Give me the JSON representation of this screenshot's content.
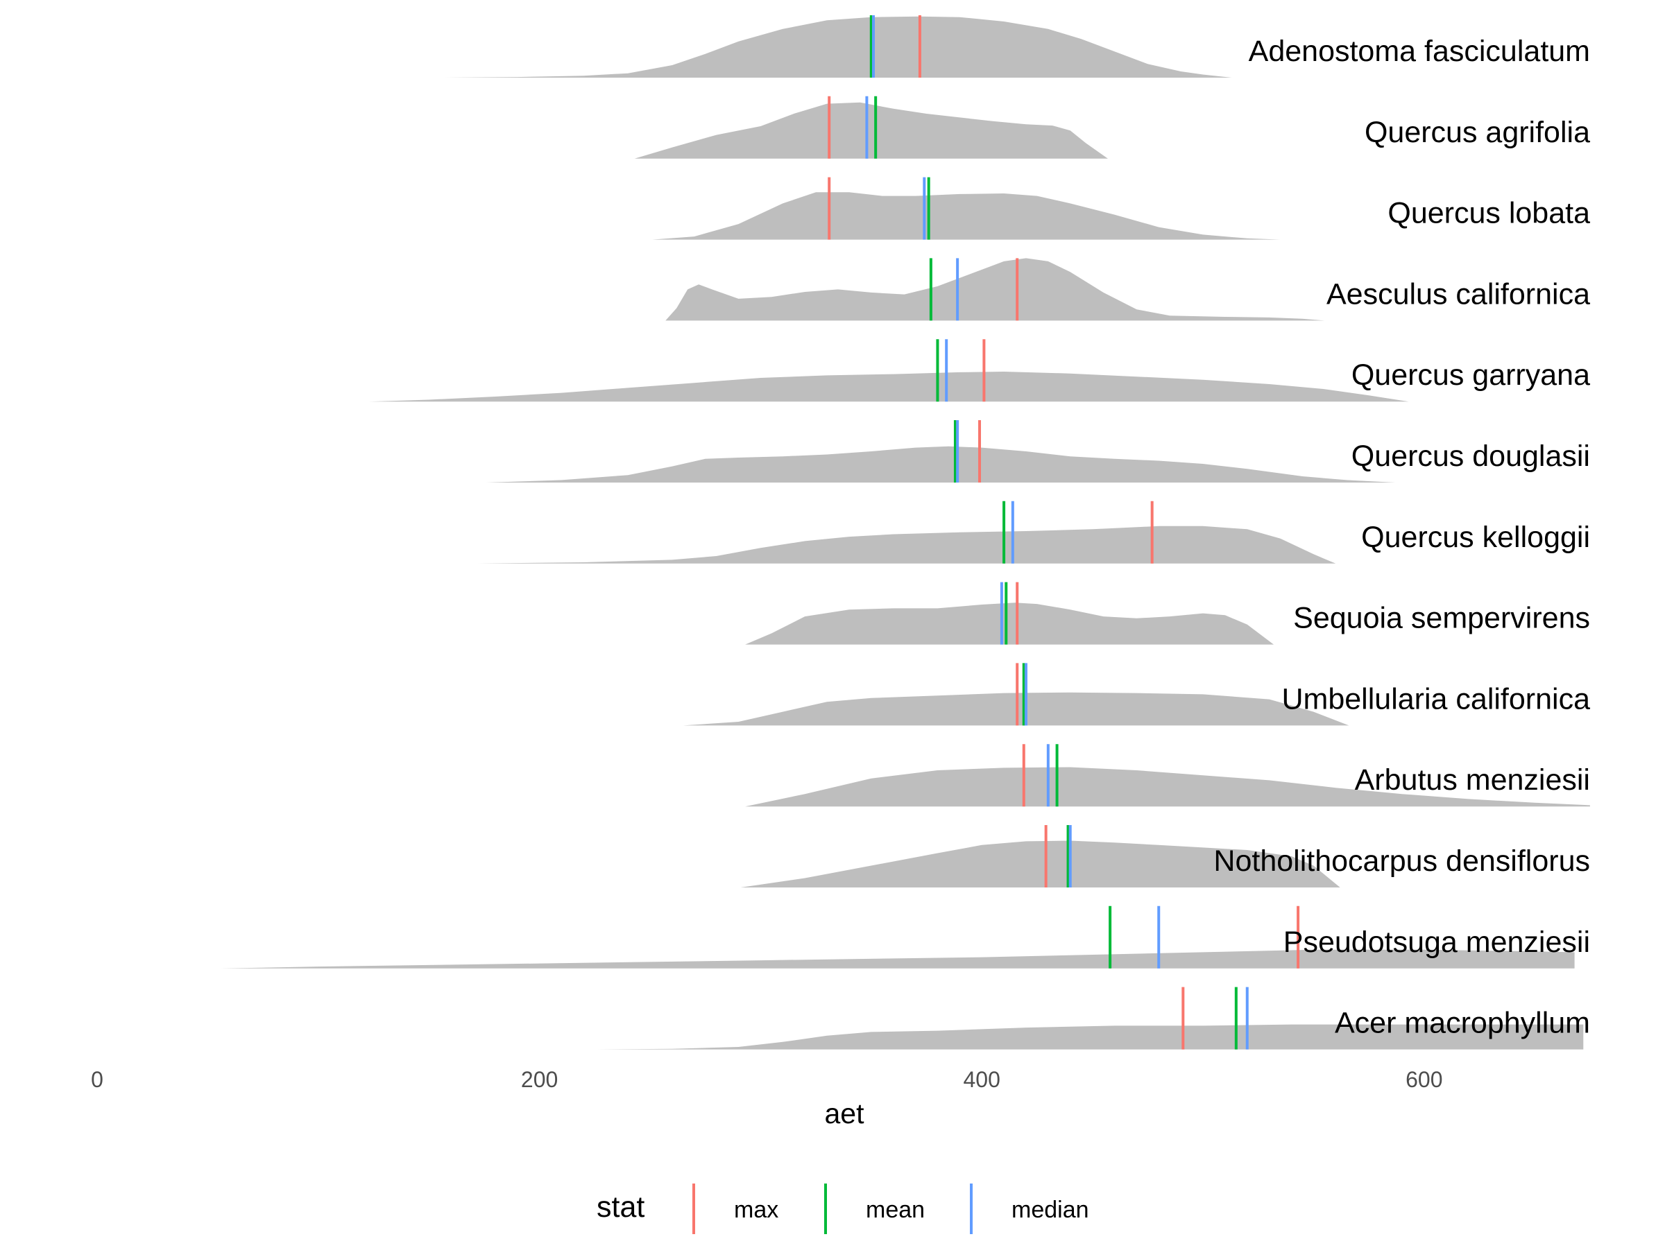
{
  "chart_data": {
    "type": "ridgeline",
    "xlabel": "aet",
    "xlim": [
      0,
      675
    ],
    "x_ticks": [
      0,
      200,
      400,
      600
    ],
    "x_tick_labels": [
      "0",
      "200",
      "400",
      "600"
    ],
    "grid": false,
    "legend": {
      "title": "stat",
      "position": "bottom",
      "entries": [
        {
          "key": "max",
          "label": "max",
          "color": "#F8766D"
        },
        {
          "key": "mean",
          "label": "mean",
          "color": "#00BA38"
        },
        {
          "key": "median",
          "label": "median",
          "color": "#619CFF"
        }
      ]
    },
    "density_color": "#bebebe",
    "species": [
      {
        "name": "Adenostoma fasciculatum",
        "range": [
          157,
          513
        ],
        "max": 372,
        "mean": 350,
        "median": 351,
        "density": [
          [
            157,
            0
          ],
          [
            190,
            0.01
          ],
          [
            220,
            0.03
          ],
          [
            240,
            0.07
          ],
          [
            260,
            0.2
          ],
          [
            275,
            0.38
          ],
          [
            290,
            0.58
          ],
          [
            310,
            0.78
          ],
          [
            330,
            0.92
          ],
          [
            350,
            0.97
          ],
          [
            372,
            0.98
          ],
          [
            390,
            0.97
          ],
          [
            410,
            0.9
          ],
          [
            430,
            0.78
          ],
          [
            445,
            0.62
          ],
          [
            460,
            0.42
          ],
          [
            475,
            0.22
          ],
          [
            490,
            0.1
          ],
          [
            500,
            0.05
          ],
          [
            513,
            0
          ]
        ]
      },
      {
        "name": "Quercus agrifolia",
        "range": [
          243,
          457
        ],
        "max": 331,
        "mean": 352,
        "median": 348,
        "density": [
          [
            243,
            0
          ],
          [
            260,
            0.18
          ],
          [
            280,
            0.38
          ],
          [
            300,
            0.52
          ],
          [
            315,
            0.72
          ],
          [
            330,
            0.88
          ],
          [
            345,
            0.9
          ],
          [
            360,
            0.8
          ],
          [
            375,
            0.72
          ],
          [
            390,
            0.66
          ],
          [
            405,
            0.6
          ],
          [
            420,
            0.55
          ],
          [
            432,
            0.53
          ],
          [
            440,
            0.45
          ],
          [
            447,
            0.25
          ],
          [
            457,
            0
          ]
        ]
      },
      {
        "name": "Quercus lobata",
        "range": [
          251,
          535
        ],
        "max": 331,
        "mean": 376,
        "median": 374,
        "density": [
          [
            251,
            0
          ],
          [
            270,
            0.05
          ],
          [
            290,
            0.25
          ],
          [
            310,
            0.58
          ],
          [
            325,
            0.76
          ],
          [
            340,
            0.76
          ],
          [
            355,
            0.7
          ],
          [
            370,
            0.7
          ],
          [
            390,
            0.73
          ],
          [
            410,
            0.74
          ],
          [
            425,
            0.7
          ],
          [
            440,
            0.58
          ],
          [
            460,
            0.4
          ],
          [
            480,
            0.2
          ],
          [
            500,
            0.08
          ],
          [
            520,
            0.02
          ],
          [
            535,
            0
          ]
        ]
      },
      {
        "name": "Aesculus californica",
        "range": [
          257,
          555
        ],
        "max": 416,
        "mean": 377,
        "median": 389,
        "density": [
          [
            257,
            0
          ],
          [
            262,
            0.2
          ],
          [
            267,
            0.5
          ],
          [
            272,
            0.58
          ],
          [
            278,
            0.5
          ],
          [
            290,
            0.35
          ],
          [
            305,
            0.38
          ],
          [
            320,
            0.46
          ],
          [
            335,
            0.5
          ],
          [
            350,
            0.45
          ],
          [
            365,
            0.42
          ],
          [
            380,
            0.55
          ],
          [
            395,
            0.75
          ],
          [
            410,
            0.95
          ],
          [
            420,
            1.0
          ],
          [
            430,
            0.95
          ],
          [
            440,
            0.78
          ],
          [
            455,
            0.45
          ],
          [
            470,
            0.18
          ],
          [
            485,
            0.08
          ],
          [
            510,
            0.06
          ],
          [
            530,
            0.05
          ],
          [
            545,
            0.03
          ],
          [
            555,
            0
          ]
        ]
      },
      {
        "name": "Quercus garryana",
        "range": [
          123,
          593
        ],
        "max": 401,
        "mean": 380,
        "median": 384,
        "density": [
          [
            123,
            0
          ],
          [
            150,
            0.03
          ],
          [
            180,
            0.08
          ],
          [
            210,
            0.14
          ],
          [
            240,
            0.22
          ],
          [
            270,
            0.3
          ],
          [
            300,
            0.38
          ],
          [
            330,
            0.42
          ],
          [
            360,
            0.44
          ],
          [
            390,
            0.47
          ],
          [
            410,
            0.48
          ],
          [
            440,
            0.45
          ],
          [
            470,
            0.4
          ],
          [
            500,
            0.35
          ],
          [
            530,
            0.28
          ],
          [
            555,
            0.2
          ],
          [
            575,
            0.1
          ],
          [
            593,
            0
          ]
        ]
      },
      {
        "name": "Quercus douglasii",
        "range": [
          176,
          587
        ],
        "max": 399,
        "mean": 388,
        "median": 389,
        "density": [
          [
            176,
            0
          ],
          [
            210,
            0.04
          ],
          [
            240,
            0.12
          ],
          [
            260,
            0.26
          ],
          [
            275,
            0.38
          ],
          [
            290,
            0.4
          ],
          [
            310,
            0.42
          ],
          [
            330,
            0.45
          ],
          [
            350,
            0.5
          ],
          [
            370,
            0.56
          ],
          [
            385,
            0.58
          ],
          [
            400,
            0.56
          ],
          [
            420,
            0.5
          ],
          [
            440,
            0.42
          ],
          [
            460,
            0.38
          ],
          [
            480,
            0.35
          ],
          [
            500,
            0.3
          ],
          [
            520,
            0.22
          ],
          [
            545,
            0.1
          ],
          [
            565,
            0.04
          ],
          [
            587,
            0
          ]
        ]
      },
      {
        "name": "Quercus kelloggii",
        "range": [
          172,
          560
        ],
        "max": 477,
        "mean": 410,
        "median": 414,
        "density": [
          [
            172,
            0
          ],
          [
            220,
            0.02
          ],
          [
            260,
            0.06
          ],
          [
            280,
            0.12
          ],
          [
            300,
            0.25
          ],
          [
            320,
            0.36
          ],
          [
            340,
            0.43
          ],
          [
            360,
            0.47
          ],
          [
            390,
            0.5
          ],
          [
            420,
            0.52
          ],
          [
            450,
            0.55
          ],
          [
            480,
            0.6
          ],
          [
            500,
            0.6
          ],
          [
            520,
            0.55
          ],
          [
            535,
            0.4
          ],
          [
            550,
            0.15
          ],
          [
            560,
            0
          ]
        ]
      },
      {
        "name": "Sequoia sempervirens",
        "range": [
          293,
          532
        ],
        "max": 416,
        "mean": 411,
        "median": 409,
        "density": [
          [
            293,
            0
          ],
          [
            305,
            0.18
          ],
          [
            320,
            0.45
          ],
          [
            340,
            0.56
          ],
          [
            360,
            0.58
          ],
          [
            380,
            0.58
          ],
          [
            400,
            0.64
          ],
          [
            415,
            0.67
          ],
          [
            425,
            0.65
          ],
          [
            440,
            0.56
          ],
          [
            455,
            0.45
          ],
          [
            470,
            0.42
          ],
          [
            485,
            0.45
          ],
          [
            500,
            0.5
          ],
          [
            510,
            0.47
          ],
          [
            520,
            0.32
          ],
          [
            532,
            0
          ]
        ]
      },
      {
        "name": "Umbellularia californica",
        "range": [
          265,
          566
        ],
        "max": 416,
        "mean": 419,
        "median": 420,
        "density": [
          [
            265,
            0
          ],
          [
            290,
            0.06
          ],
          [
            310,
            0.22
          ],
          [
            330,
            0.38
          ],
          [
            350,
            0.44
          ],
          [
            380,
            0.48
          ],
          [
            410,
            0.52
          ],
          [
            440,
            0.53
          ],
          [
            470,
            0.52
          ],
          [
            500,
            0.5
          ],
          [
            530,
            0.42
          ],
          [
            550,
            0.22
          ],
          [
            566,
            0
          ]
        ]
      },
      {
        "name": "Arbutus menziesii",
        "range": [
          293,
          675
        ],
        "max": 419,
        "mean": 434,
        "median": 430,
        "density": [
          [
            293,
            0
          ],
          [
            320,
            0.2
          ],
          [
            350,
            0.45
          ],
          [
            380,
            0.58
          ],
          [
            410,
            0.62
          ],
          [
            440,
            0.63
          ],
          [
            470,
            0.58
          ],
          [
            500,
            0.5
          ],
          [
            530,
            0.42
          ],
          [
            560,
            0.3
          ],
          [
            590,
            0.2
          ],
          [
            620,
            0.12
          ],
          [
            650,
            0.06
          ],
          [
            675,
            0.02
          ]
        ]
      },
      {
        "name": "Notholithocarpus densiflorus",
        "range": [
          291,
          562
        ],
        "max": 429,
        "mean": 439,
        "median": 440,
        "density": [
          [
            291,
            0
          ],
          [
            320,
            0.15
          ],
          [
            350,
            0.35
          ],
          [
            380,
            0.55
          ],
          [
            400,
            0.68
          ],
          [
            420,
            0.74
          ],
          [
            440,
            0.75
          ],
          [
            460,
            0.72
          ],
          [
            480,
            0.68
          ],
          [
            500,
            0.64
          ],
          [
            520,
            0.6
          ],
          [
            540,
            0.5
          ],
          [
            550,
            0.35
          ],
          [
            562,
            0
          ]
        ]
      },
      {
        "name": "Pseudotsuga menziesii",
        "range": [
          56,
          668
        ],
        "max": 543,
        "mean": 458,
        "median": 480,
        "density": [
          [
            56,
            0
          ],
          [
            100,
            0.03
          ],
          [
            200,
            0.08
          ],
          [
            300,
            0.13
          ],
          [
            400,
            0.18
          ],
          [
            450,
            0.22
          ],
          [
            500,
            0.26
          ],
          [
            550,
            0.3
          ],
          [
            600,
            0.3
          ],
          [
            640,
            0.28
          ],
          [
            668,
            0.26
          ]
        ]
      },
      {
        "name": "Acer macrophyllum",
        "range": [
          226,
          672
        ],
        "max": 491,
        "mean": 515,
        "median": 520,
        "density": [
          [
            226,
            0
          ],
          [
            260,
            0.01
          ],
          [
            290,
            0.04
          ],
          [
            310,
            0.12
          ],
          [
            330,
            0.22
          ],
          [
            350,
            0.28
          ],
          [
            380,
            0.3
          ],
          [
            420,
            0.35
          ],
          [
            460,
            0.38
          ],
          [
            500,
            0.38
          ],
          [
            540,
            0.4
          ],
          [
            580,
            0.4
          ],
          [
            620,
            0.4
          ],
          [
            660,
            0.4
          ],
          [
            672,
            0.4
          ]
        ]
      }
    ]
  }
}
